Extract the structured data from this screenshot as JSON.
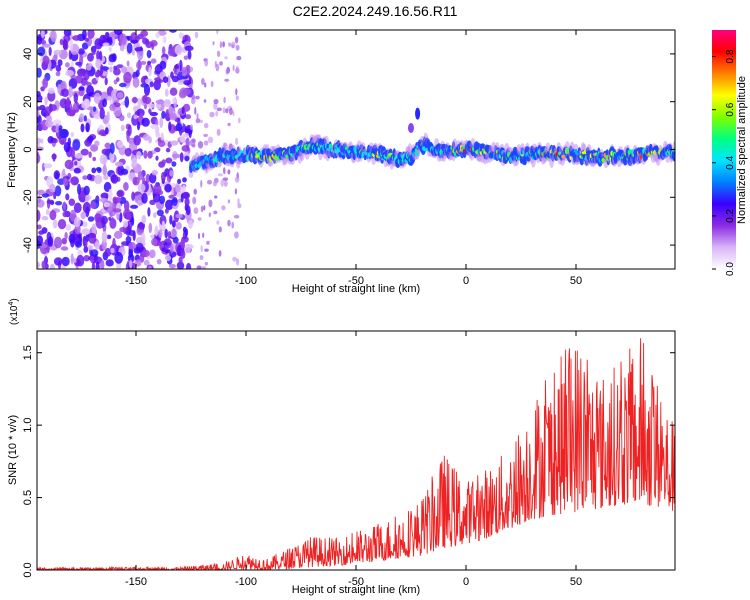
{
  "title": "C2E2.2024.249.16.56.R11",
  "chart_data": [
    {
      "type": "heatmap",
      "xlabel": "Height of straight line (km)",
      "ylabel": "Frequency (Hz)",
      "xlim": [
        -195,
        95
      ],
      "ylim": [
        -50,
        50
      ],
      "xticks": [
        -150,
        -100,
        -50,
        0,
        50
      ],
      "yticks": [
        -40,
        -20,
        0,
        20,
        40
      ],
      "colorbar": {
        "label": "Normalized spectral amplitude",
        "range": [
          0.0,
          0.9
        ],
        "ticks": [
          0.0,
          0.2,
          0.4,
          0.6,
          0.8
        ],
        "colors": [
          "#ffffff",
          "#d8b4f8",
          "#8a2be2",
          "#3a00ff",
          "#0080ff",
          "#00e5ff",
          "#00ff80",
          "#80ff00",
          "#ffff00",
          "#ff8000",
          "#ff0000",
          "#ff0080"
        ]
      },
      "noise_region_x": [
        -195,
        -125
      ],
      "signal_ridge": {
        "x": [
          -125,
          -110,
          -100,
          -90,
          -80,
          -70,
          -60,
          -50,
          -40,
          -30,
          -25,
          -20,
          -10,
          0,
          10,
          20,
          30,
          40,
          50,
          60,
          70,
          80,
          90,
          95
        ],
        "center_hz": [
          -7,
          -3,
          -2,
          -3,
          -2,
          2,
          0,
          -1,
          -2,
          -4,
          -3,
          2,
          -1,
          0,
          -1,
          -3,
          -2,
          -2,
          -2,
          -3,
          -3,
          -2,
          -1,
          -1
        ],
        "peak_amplitude": [
          0.35,
          0.45,
          0.45,
          0.75,
          0.5,
          0.5,
          0.45,
          0.45,
          0.7,
          0.5,
          0.45,
          0.5,
          0.45,
          0.85,
          0.7,
          0.55,
          0.6,
          0.8,
          0.6,
          0.65,
          0.7,
          0.8,
          0.55,
          0.5
        ]
      },
      "feature_near_x_minus_22": {
        "x": -22,
        "freq_hz": 15
      }
    },
    {
      "type": "line",
      "xlabel": "Height of straight line (km)",
      "ylabel": "SNR (10 * v/v)",
      "y_multiplier": "(x10",
      "y_multiplier_exp": "4",
      "xlim": [
        -195,
        95
      ],
      "ylim": [
        0,
        1.65
      ],
      "xticks": [
        -150,
        -100,
        -50,
        0,
        50
      ],
      "yticks": [
        "0.0",
        "0.5",
        "1.0",
        "1.5"
      ],
      "yticks_values": [
        0,
        0.5,
        1.0,
        1.5
      ],
      "color": "#ee2222",
      "envelope": {
        "x": [
          -195,
          -130,
          -110,
          -100,
          -90,
          -80,
          -70,
          -60,
          -50,
          -40,
          -30,
          -20,
          -10,
          0,
          10,
          20,
          30,
          40,
          50,
          60,
          70,
          80,
          90,
          95
        ],
        "upper": [
          0.015,
          0.02,
          0.05,
          0.12,
          0.08,
          0.16,
          0.24,
          0.22,
          0.27,
          0.32,
          0.4,
          0.5,
          0.82,
          0.62,
          0.72,
          0.85,
          1.2,
          1.4,
          1.65,
          1.35,
          1.45,
          1.65,
          1.2,
          1.0
        ],
        "lower": [
          0.0,
          0.0,
          0.0,
          0.01,
          0.0,
          0.01,
          0.02,
          0.03,
          0.04,
          0.06,
          0.08,
          0.1,
          0.15,
          0.18,
          0.22,
          0.28,
          0.35,
          0.38,
          0.4,
          0.42,
          0.45,
          0.45,
          0.42,
          0.4
        ]
      }
    }
  ]
}
